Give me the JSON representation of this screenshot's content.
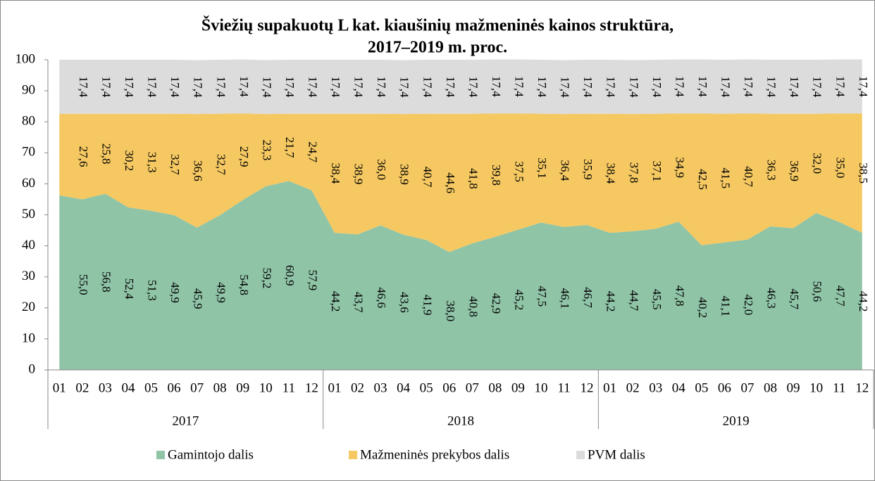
{
  "chart_data": {
    "type": "stacked_area",
    "title": "Šviežių supakuotų L kat. kiaušinių mažmeninės kainos struktūra,",
    "subtitle": "2017–2019 m. proc.",
    "categories": [
      "01",
      "02",
      "03",
      "04",
      "05",
      "06",
      "07",
      "08",
      "09",
      "10",
      "11",
      "12",
      "01",
      "02",
      "03",
      "04",
      "05",
      "06",
      "07",
      "08",
      "09",
      "10",
      "11",
      "12",
      "01",
      "02",
      "03",
      "04",
      "05",
      "06",
      "07",
      "08",
      "09",
      "10",
      "11",
      "12"
    ],
    "groups": [
      "2017",
      "2018",
      "2019"
    ],
    "ylim": [
      0,
      100
    ],
    "yticks": [
      0,
      10,
      20,
      30,
      40,
      50,
      60,
      70,
      80,
      90,
      100
    ],
    "legend": "bottom",
    "series": [
      {
        "name": "Gamintojo dalis",
        "color": "#8fc4a7",
        "values": [
          56.3,
          55.0,
          56.8,
          52.4,
          51.3,
          49.9,
          45.9,
          49.9,
          54.8,
          59.2,
          60.9,
          57.9,
          44.2,
          43.7,
          46.6,
          43.6,
          41.9,
          38.0,
          40.8,
          42.9,
          45.2,
          47.5,
          46.1,
          46.7,
          44.2,
          44.7,
          45.5,
          47.8,
          40.2,
          41.1,
          42.0,
          46.3,
          45.7,
          50.6,
          47.7,
          44.2
        ],
        "value_labels": [
          null,
          "55,0",
          "56,8",
          "52,4",
          "51,3",
          "49,9",
          "45,9",
          "49,9",
          "54,8",
          "59,2",
          "60,9",
          "57,9",
          "44,2",
          "43,7",
          "46,6",
          "43,6",
          "41,9",
          "38,0",
          "40,8",
          "42,9",
          "45,2",
          "47,5",
          "46,1",
          "46,7",
          "44,2",
          "44,7",
          "45,5",
          "47,8",
          "40,2",
          "41,1",
          "42,0",
          "46,3",
          "45,7",
          "50,6",
          "47,7",
          "44,2"
        ]
      },
      {
        "name": "Mažmeninės prekybos dalis",
        "color": "#f5c862",
        "values": [
          26.3,
          27.6,
          25.8,
          30.2,
          31.3,
          32.7,
          36.6,
          32.7,
          27.9,
          23.3,
          21.7,
          24.7,
          38.4,
          38.9,
          36.0,
          38.9,
          40.7,
          44.6,
          41.8,
          39.8,
          37.5,
          35.1,
          36.4,
          35.9,
          38.4,
          37.8,
          37.1,
          34.9,
          42.5,
          41.5,
          40.7,
          36.3,
          36.9,
          32.0,
          35.0,
          38.5
        ],
        "value_labels": [
          null,
          "27,6",
          "25,8",
          "30,2",
          "31,3",
          "32,7",
          "36,6",
          "32,7",
          "27,9",
          "23,3",
          "21,7",
          "24,7",
          "38,4",
          "38,9",
          "36,0",
          "38,9",
          "40,7",
          "44,6",
          "41,8",
          "39,8",
          "37,5",
          "35,1",
          "36,4",
          "35,9",
          "38,4",
          "37,8",
          "37,1",
          "34,9",
          "42,5",
          "41,5",
          "40,7",
          "36,3",
          "36,9",
          "32,0",
          "35,0",
          "38,5"
        ]
      },
      {
        "name": "PVM dalis",
        "color": "#dcdcdc",
        "values": [
          17.4,
          17.4,
          17.4,
          17.4,
          17.4,
          17.4,
          17.4,
          17.4,
          17.4,
          17.4,
          17.4,
          17.4,
          17.4,
          17.4,
          17.4,
          17.4,
          17.4,
          17.4,
          17.4,
          17.4,
          17.4,
          17.4,
          17.4,
          17.4,
          17.4,
          17.4,
          17.4,
          17.4,
          17.4,
          17.4,
          17.4,
          17.4,
          17.4,
          17.4,
          17.4,
          17.4
        ],
        "value_labels": [
          null,
          "17,4",
          "17,4",
          "17,4",
          "17,4",
          "17,4",
          "17,4",
          "17,4",
          "17,4",
          "17,4",
          "17,4",
          "17,4",
          "17,4",
          "17,4",
          "17,4",
          "17,4",
          "17,4",
          "17,4",
          "17,4",
          "17,4",
          "17,4",
          "17,4",
          "17,4",
          "17,4",
          "17,4",
          "17,4",
          "17,4",
          "17,4",
          "17,4",
          "17,4",
          "17,4",
          "17,4",
          "17,4",
          "17,4",
          "17,4",
          "17,4"
        ]
      }
    ]
  }
}
